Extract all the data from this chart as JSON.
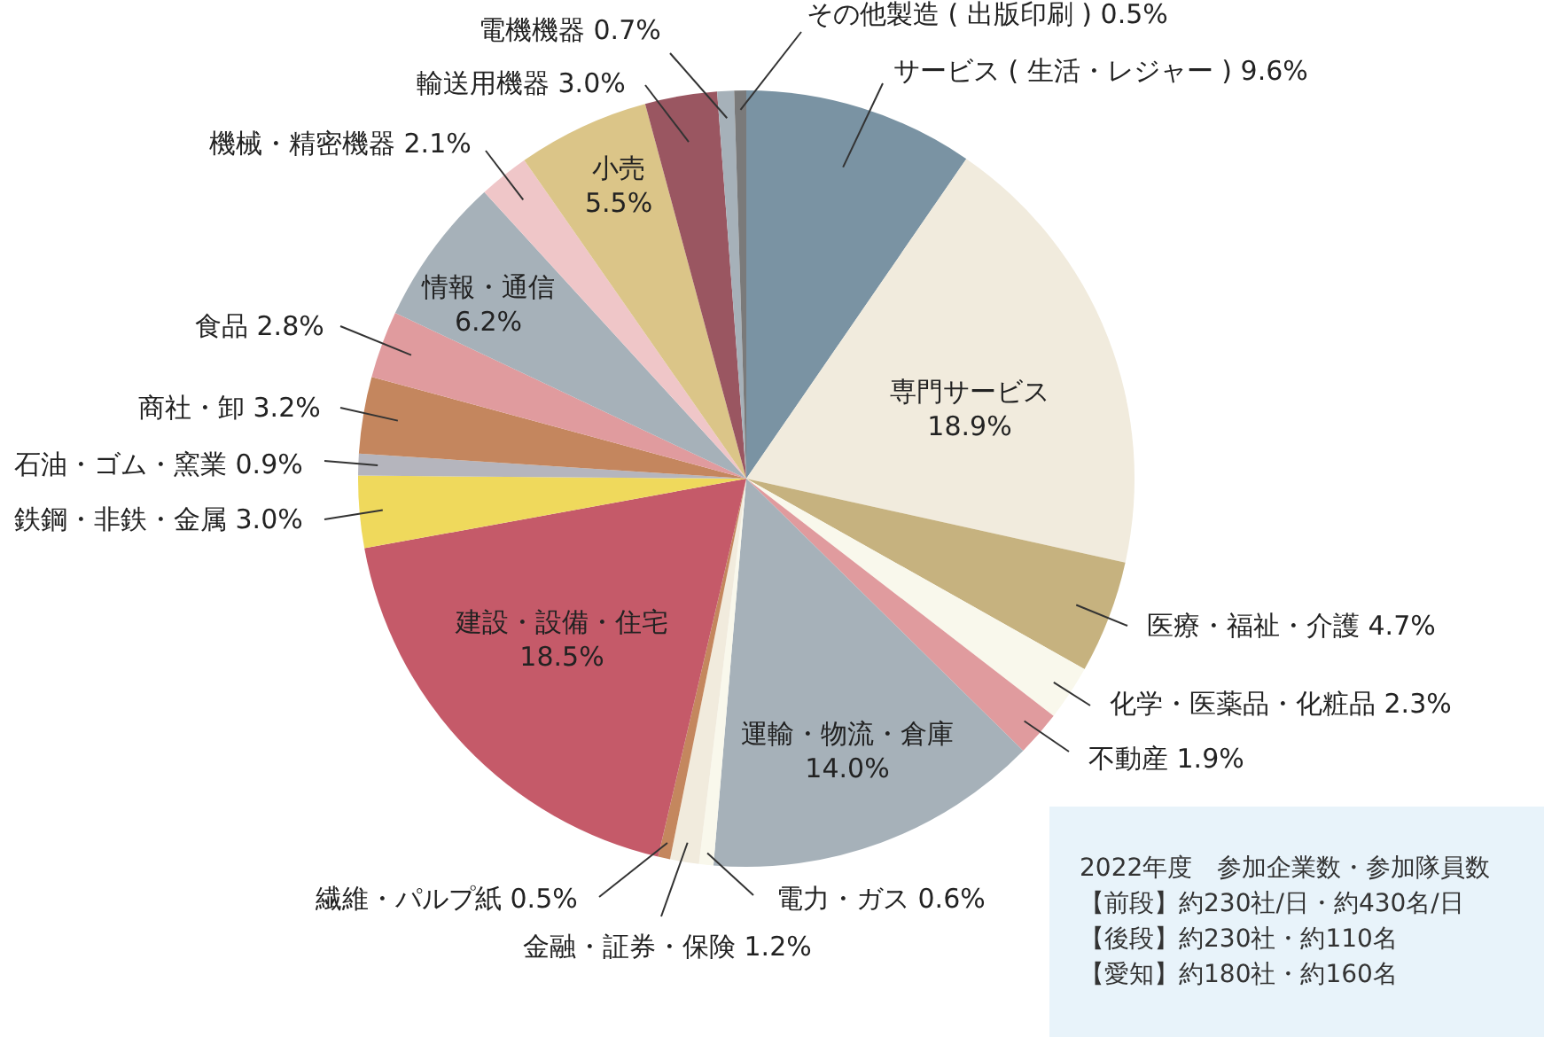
{
  "chart_data": {
    "type": "pie",
    "categories": [
      "サービス ( 生活・レジャー )",
      "専門サービス",
      "医療・福祉・介護",
      "化学・医薬品・化粧品",
      "不動産",
      "運輸・物流・倉庫",
      "電力・ガス",
      "金融・証券・保険",
      "繊維・パルプ紙",
      "建設・設備・住宅",
      "鉄鋼・非鉄・金属",
      "石油・ゴム・窯業",
      "商社・卸",
      "食品",
      "情報・通信",
      "機械・精密機器",
      "小売",
      "輸送用機器",
      "電機機器",
      "その他製造 ( 出版印刷 )"
    ],
    "values": [
      9.6,
      18.9,
      4.7,
      2.3,
      1.9,
      14.0,
      0.6,
      1.2,
      0.5,
      18.5,
      3.0,
      0.9,
      3.2,
      2.8,
      6.2,
      2.1,
      5.5,
      3.0,
      0.7,
      0.5
    ],
    "value_labels": [
      "9.6%",
      "18.9%",
      "4.7%",
      "2.3%",
      "1.9%",
      "14.0%",
      "0.6%",
      "1.2%",
      "0.5%",
      "18.5%",
      "3.0%",
      "0.9%",
      "3.2%",
      "2.8%",
      "6.2%",
      "2.1%",
      "5.5%",
      "3.0%",
      "0.7%",
      "0.5%"
    ],
    "colors": [
      "#7a93a3",
      "#f1ebdd",
      "#c6b27f",
      "#f9f8ec",
      "#e09b9e",
      "#a6b1b9",
      "#f9f8ec",
      "#f1ebdd",
      "#c4875e",
      "#c55a69",
      "#efd95c",
      "#b5b5bd",
      "#c4865e",
      "#e09b9e",
      "#a6b1b9",
      "#efc6c8",
      "#dbc588",
      "#9a5661",
      "#a6b1b9",
      "#7a7a7a"
    ],
    "annotations": [
      "2022年度　参加企業数・参加隊員数",
      "【前段】約230社/日・約430名/日",
      "【後段】約230社・約110名",
      "【愛知】約180社・約160名"
    ],
    "legend": false
  }
}
